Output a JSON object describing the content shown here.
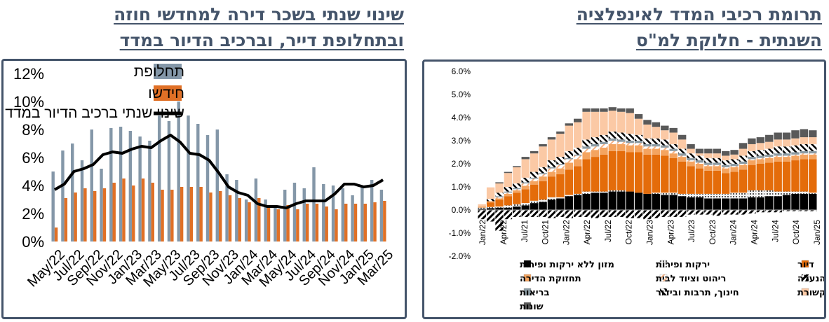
{
  "left": {
    "title_line1": "שינוי שנתי בשכר דירה למחדשי חוזה",
    "title_line2": "ובתחלופת דייר, וברכיב הדיור במדד",
    "chart_data": {
      "type": "bar",
      "categories": [
        "May/22",
        "Jun/22",
        "Jul/22",
        "Aug/22",
        "Sep/22",
        "Oct/22",
        "Nov/22",
        "Dec/22",
        "Jan/23",
        "Feb/23",
        "Mar/23",
        "Apr/23",
        "May/23",
        "Jun/23",
        "Jul/23",
        "Aug/23",
        "Sep/23",
        "Oct/23",
        "Nov/23",
        "Dec/23",
        "Jan/24",
        "Feb/24",
        "Mar/24",
        "Apr/24",
        "May/24",
        "Jun/24",
        "Jul/24",
        "Aug/24",
        "Sep/24",
        "Oct/24",
        "Nov/24",
        "Dec/24",
        "Jan/25",
        "Feb/25",
        "Mar/25"
      ],
      "x_tick_labels": [
        "May/22",
        "Jul/22",
        "Sep/22",
        "Nov/22",
        "Jan/23",
        "Mar/23",
        "May/23",
        "Jul/23",
        "Sep/23",
        "Nov/23",
        "Jan/24",
        "Mar/24",
        "May/24",
        "Jul/24",
        "Sep/24",
        "Nov/24",
        "Jan/25",
        "Mar/25"
      ],
      "series": [
        {
          "name": "תחלופת",
          "kind": "bar",
          "color": "#8497a8",
          "values": [
            5.0,
            6.5,
            7.0,
            5.8,
            8.0,
            5.2,
            8.1,
            8.2,
            7.9,
            7.5,
            7.2,
            9.0,
            8.6,
            10.0,
            9.0,
            8.4,
            7.6,
            8.0,
            4.8,
            4.4,
            3.0,
            4.5,
            3.0,
            2.6,
            3.7,
            4.2,
            3.8,
            5.3,
            4.1,
            4.0,
            3.8,
            3.3,
            3.9,
            4.4,
            3.7
          ]
        },
        {
          "name": "חידשו",
          "kind": "bar",
          "color": "#e07026",
          "values": [
            1.0,
            3.1,
            3.5,
            3.8,
            3.6,
            3.8,
            4.2,
            4.5,
            4.0,
            4.5,
            4.2,
            3.7,
            3.7,
            3.9,
            3.9,
            3.9,
            3.5,
            3.6,
            3.3,
            3.1,
            2.8,
            3.1,
            2.6,
            2.3,
            2.6,
            2.3,
            2.7,
            2.7,
            2.5,
            2.3,
            2.7,
            2.7,
            2.7,
            2.8,
            2.9
          ]
        },
        {
          "name": "שינוי שנתי  ברכיב הדיור במדד",
          "kind": "line",
          "color": "#000000",
          "values": [
            3.7,
            4.1,
            5.0,
            5.2,
            5.5,
            6.2,
            6.4,
            6.3,
            6.6,
            6.8,
            6.7,
            7.2,
            7.6,
            7.1,
            6.3,
            6.2,
            5.8,
            4.9,
            3.9,
            3.5,
            3.3,
            2.7,
            2.5,
            2.5,
            2.4,
            2.7,
            2.9,
            2.9,
            2.9,
            3.4,
            4.1,
            4.1,
            3.9,
            4.0,
            4.4
          ]
        }
      ],
      "y_tick_labels": [
        "0%",
        "2%",
        "4%",
        "6%",
        "8%",
        "10%",
        "12%"
      ],
      "ylim": [
        0,
        12.5
      ],
      "legend": "top-left"
    }
  },
  "right": {
    "title_line1": "תרומת רכיבי המדד לאינפלציה",
    "title_line2": "השנתית - חלוקת למ\"ס",
    "chart_data": {
      "type": "bar",
      "stacked": true,
      "x": [
        "Jan/22",
        "Feb/22",
        "Mar/22",
        "Apr/22",
        "May/22",
        "Jun/22",
        "Jul/22",
        "Aug/22",
        "Sep/22",
        "Oct/22",
        "Nov/22",
        "Dec/22",
        "Jan/23",
        "Feb/23",
        "Mar/23",
        "Apr/23",
        "May/23",
        "Jun/23",
        "Jul/23",
        "Aug/23",
        "Sep/23",
        "Oct/23",
        "Nov/23",
        "Dec/23",
        "Jan/24",
        "Feb/24",
        "Mar/24",
        "Apr/24",
        "May/24",
        "Jun/24",
        "Jul/24",
        "Aug/24",
        "Sep/24",
        "Oct/24",
        "Nov/24",
        "Dec/24",
        "Jan/25",
        "Feb/25",
        "Mar/25"
      ],
      "x_tick_labels": [
        "Jan/22",
        "Apr/22",
        "Jul/21",
        "Oct/21",
        "Jan/22",
        "Apr/22",
        "Jul/22",
        "Oct/22",
        "Jan/23",
        "Apr/23",
        "Jul/23",
        "Oct/23",
        "Jan/24",
        "Apr/24",
        "Jul/24",
        "Oct/24",
        "Jan/25"
      ],
      "y_tick_labels": [
        "-2.0%",
        "-1.0%",
        "0.0%",
        "1.0%",
        "2.0%",
        "3.0%",
        "4.0%",
        "5.0%",
        "6.0%"
      ],
      "ylim": [
        -2.0,
        6.0
      ],
      "series": [
        {
          "name": "מזון ללא ירקות ופירות",
          "color": "#000000",
          "values": [
            0.05,
            0.08,
            0.1,
            0.1,
            0.15,
            0.2,
            0.3,
            0.35,
            0.45,
            0.5,
            0.6,
            0.65,
            0.7,
            0.75,
            0.75,
            0.8,
            0.8,
            0.8,
            0.75,
            0.7,
            0.7,
            0.65,
            0.65,
            0.6,
            0.55,
            0.55,
            0.5,
            0.5,
            0.5,
            0.5,
            0.5,
            0.55,
            0.55,
            0.6,
            0.6,
            0.65,
            0.7,
            0.7,
            0.7
          ]
        },
        {
          "name": "ירקות ופירות",
          "color": "#d9d9d9",
          "values": [
            0.05,
            0.05,
            0.05,
            0.1,
            0.1,
            0.1,
            0.1,
            0.1,
            0.1,
            0.05,
            0.05,
            0.05,
            0.1,
            0.05,
            0.05,
            0.05,
            0.05,
            0.0,
            0.0,
            0.0,
            0.05,
            0.1,
            0.1,
            0.1,
            0.15,
            0.15,
            0.2,
            0.2,
            0.2,
            0.25,
            0.25,
            0.3,
            0.3,
            0.25,
            0.2,
            0.15,
            0.1,
            0.1,
            0.05
          ]
        },
        {
          "name": "דיור",
          "color": "#e46c0a",
          "values": [
            0.0,
            0.2,
            0.3,
            0.4,
            0.5,
            0.6,
            0.7,
            0.8,
            0.9,
            1.0,
            1.1,
            1.2,
            1.4,
            1.5,
            1.6,
            1.7,
            1.7,
            1.7,
            1.75,
            1.7,
            1.65,
            1.6,
            1.5,
            1.4,
            1.2,
            1.1,
            1.0,
            1.0,
            0.9,
            0.9,
            1.0,
            1.1,
            1.15,
            1.2,
            1.3,
            1.3,
            1.35,
            1.4,
            1.45
          ]
        },
        {
          "name": "תחזוקת הדירה",
          "color": "#f4a460",
          "values": [
            0.05,
            0.05,
            0.05,
            0.1,
            0.1,
            0.15,
            0.15,
            0.2,
            0.2,
            0.25,
            0.3,
            0.3,
            0.3,
            0.3,
            0.3,
            0.3,
            0.3,
            0.3,
            0.3,
            0.25,
            0.25,
            0.25,
            0.2,
            0.2,
            0.2,
            0.2,
            0.2,
            0.2,
            0.2,
            0.2,
            0.2,
            0.2,
            0.2,
            0.2,
            0.2,
            0.2,
            0.2,
            0.2,
            0.2
          ]
        },
        {
          "name": "ריהוט וציוד לבית",
          "color": "#f8cbad",
          "values": [
            0.0,
            0.0,
            0.05,
            0.05,
            0.05,
            0.1,
            0.1,
            0.1,
            0.15,
            0.15,
            0.15,
            0.15,
            0.15,
            0.15,
            0.15,
            0.15,
            0.1,
            0.1,
            0.1,
            0.1,
            0.1,
            0.1,
            0.1,
            0.05,
            0.05,
            0.05,
            0.05,
            0.05,
            0.05,
            0.05,
            0.05,
            0.05,
            0.05,
            0.05,
            0.05,
            0.05,
            0.05,
            0.05,
            0.05
          ]
        },
        {
          "name": "הלבשה והנעלה",
          "color": "#262626",
          "values": [
            -0.4,
            -0.5,
            -0.9,
            -0.4,
            -0.3,
            -0.3,
            -0.3,
            -0.3,
            -0.35,
            -0.3,
            -0.35,
            -0.3,
            -0.3,
            -0.35,
            -0.3,
            -0.3,
            -0.3,
            -0.35,
            -0.35,
            -0.4,
            -0.35,
            -0.3,
            -0.3,
            -0.3,
            -0.2,
            -0.2,
            -0.2,
            -0.25,
            -0.2,
            -0.2,
            -0.2,
            -0.15,
            -0.1,
            -0.1,
            -0.1,
            -0.05,
            -0.05,
            -0.05,
            -0.05
          ]
        },
        {
          "name": "בריאות",
          "color": "#7f8c8d",
          "values": [
            0.0,
            0.0,
            0.05,
            0.05,
            0.05,
            0.05,
            0.05,
            0.05,
            0.05,
            0.05,
            0.05,
            0.05,
            0.1,
            0.1,
            0.1,
            0.1,
            0.1,
            0.1,
            0.1,
            0.1,
            0.1,
            0.1,
            0.1,
            0.1,
            0.1,
            0.1,
            0.1,
            0.1,
            0.1,
            0.1,
            0.1,
            0.1,
            0.1,
            0.1,
            0.1,
            0.1,
            0.1,
            0.1,
            0.1
          ]
        },
        {
          "name": "חינוך, תרבות ובידור",
          "color": "#404040",
          "values": [
            0.0,
            0.1,
            0.15,
            0.2,
            0.2,
            0.2,
            0.25,
            0.25,
            0.3,
            0.3,
            0.3,
            0.3,
            0.3,
            0.3,
            0.3,
            0.3,
            0.3,
            0.3,
            0.25,
            0.25,
            0.25,
            0.25,
            0.2,
            0.2,
            0.2,
            0.2,
            0.2,
            0.2,
            0.2,
            0.2,
            0.25,
            0.25,
            0.25,
            0.25,
            0.3,
            0.3,
            0.3,
            0.3,
            0.3
          ]
        },
        {
          "name": "תחבורה ותקשורת",
          "color": "#fbc9a5",
          "values": [
            0.1,
            0.5,
            0.4,
            0.6,
            0.7,
            0.8,
            0.8,
            0.9,
            0.9,
            1.0,
            1.1,
            1.1,
            1.2,
            1.1,
            1.0,
            0.9,
            0.9,
            0.9,
            0.7,
            0.6,
            0.5,
            0.4,
            0.5,
            0.4,
            0.2,
            0.1,
            0.2,
            0.2,
            0.2,
            0.2,
            0.3,
            0.3,
            0.3,
            0.3,
            0.3,
            0.3,
            0.3,
            0.3,
            0.3
          ]
        },
        {
          "name": "שונות",
          "color": "#595959",
          "values": [
            0.0,
            0.0,
            0.05,
            0.05,
            0.05,
            0.1,
            0.1,
            0.1,
            0.1,
            0.1,
            0.1,
            0.15,
            0.15,
            0.15,
            0.15,
            0.15,
            0.15,
            0.2,
            0.2,
            0.2,
            0.2,
            0.2,
            0.2,
            0.2,
            0.2,
            0.2,
            0.2,
            0.2,
            0.2,
            0.2,
            0.25,
            0.25,
            0.25,
            0.3,
            0.3,
            0.3,
            0.35,
            0.35,
            0.3
          ]
        }
      ],
      "legend": "bottom"
    }
  }
}
